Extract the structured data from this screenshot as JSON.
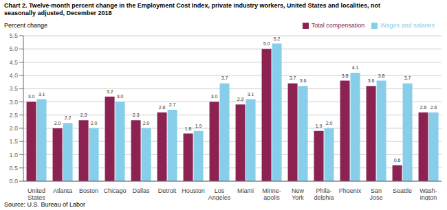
{
  "chart_data": {
    "type": "bar",
    "title": "Chart 2. Twelve-month percent change in the Employment Cost Index, private industry workers, United States and localities, not\nseasonally adjusted, December 2018",
    "y_label": "Percent change",
    "source": "Source: U.S. Bureau of Labor",
    "categories": [
      "United\nStates",
      "Atlanta",
      "Boston",
      "Chicago",
      "Dallas",
      "Detroit",
      "Houston",
      "Los\nAngeles",
      "Miami",
      "Minne-\napolis",
      "New\nYork",
      "Phila-\ndelphia",
      "Phoenix",
      "San\nJose",
      "Seattle",
      "Wash-\nington"
    ],
    "series": [
      {
        "name": "Total compensation",
        "color": "#8B2252",
        "values": [
          3.0,
          2.0,
          2.3,
          3.2,
          2.3,
          2.6,
          1.8,
          3.0,
          2.9,
          5.0,
          3.7,
          1.9,
          3.8,
          3.6,
          0.6,
          2.6
        ],
        "value_labels": [
          "3.0",
          "2.0",
          "2.3",
          "3.2",
          "2.3",
          "2.6",
          "1.8",
          "3.0",
          "2.9",
          "5.0",
          "3.7",
          "1.9",
          "3.8",
          "3.6",
          "0.6",
          "2.6"
        ]
      },
      {
        "name": "Wages and salaries",
        "color": "#87CEEB",
        "values": [
          3.1,
          2.2,
          2.0,
          3.0,
          2.0,
          2.7,
          1.9,
          3.7,
          3.1,
          5.2,
          3.6,
          2.0,
          4.1,
          3.8,
          3.7,
          2.6
        ],
        "value_labels": [
          "3.1",
          "2.2",
          "2.0",
          "3.0",
          "2.0",
          "2.7",
          "1.9",
          "3.7",
          "3.1",
          "5.2",
          "3.6",
          "2.0",
          "4.1",
          "3.8",
          "3.7",
          "2.6"
        ]
      }
    ],
    "ylim": [
      0,
      5.5
    ],
    "yticks": [
      {
        "value": 0.0,
        "label": "0.0"
      },
      0.5,
      {
        "value": 1.0,
        "label": "1.0"
      },
      1.5,
      {
        "value": 2.0,
        "label": "2.0"
      },
      2.5,
      {
        "value": 3.0,
        "label": "3.0"
      },
      3.5,
      {
        "value": 4.0,
        "label": "4.0"
      },
      4.5,
      {
        "value": 5.0,
        "label": "5.0"
      },
      5.5
    ],
    "grid": true,
    "legend": "upper right",
    "data_labels": true
  }
}
